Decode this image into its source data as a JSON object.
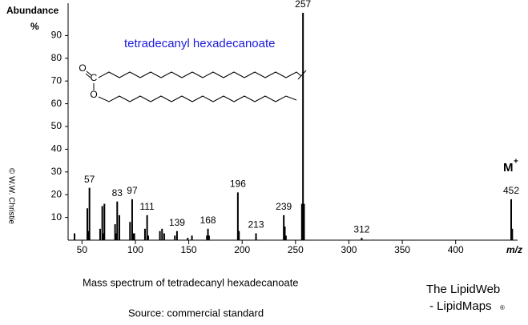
{
  "chart_data": {
    "type": "spectrum",
    "title": "tetradecanyl hexadecanoate",
    "caption": "Mass spectrum of tetradecanyl hexadecanoate",
    "source": "Source: commercial standard",
    "brand_line1": "The LipidWeb",
    "brand_line2": "- LipidMaps",
    "brand_mark": "®",
    "copyright": "© W.W. Christie",
    "y_label": "Abundance",
    "y_unit": "%",
    "x_label": "m/z",
    "molecular_ion_label": "M",
    "molecular_ion_charge": "+",
    "structure_atoms": [
      "O",
      "C",
      "O"
    ],
    "color": "#000000",
    "x": [
      43,
      55,
      56,
      57,
      67,
      69,
      70,
      71,
      81,
      82,
      83,
      85,
      95,
      97,
      98,
      99,
      109,
      111,
      112,
      123,
      125,
      127,
      137,
      139,
      149,
      153,
      167,
      168,
      169,
      196,
      197,
      213,
      239,
      240,
      241,
      256,
      257,
      258,
      312,
      452,
      453
    ],
    "values": [
      3,
      14,
      4,
      23,
      5,
      15,
      3,
      16,
      7,
      3,
      17,
      11,
      8,
      18,
      3,
      3,
      5,
      11,
      2,
      4,
      5,
      3,
      2,
      4,
      1,
      2,
      2,
      5,
      2,
      21,
      4,
      3,
      11,
      6,
      2,
      16,
      100,
      16,
      1,
      18,
      5
    ],
    "peak_labels": [
      57,
      83,
      97,
      111,
      139,
      168,
      196,
      213,
      239,
      257,
      312,
      452
    ],
    "xlim": [
      37,
      458
    ],
    "ylim": [
      0,
      100
    ],
    "xticks": [
      50,
      100,
      150,
      200,
      250,
      300,
      350,
      400
    ],
    "yticks": [
      10,
      20,
      30,
      40,
      50,
      60,
      70,
      80,
      90
    ]
  }
}
